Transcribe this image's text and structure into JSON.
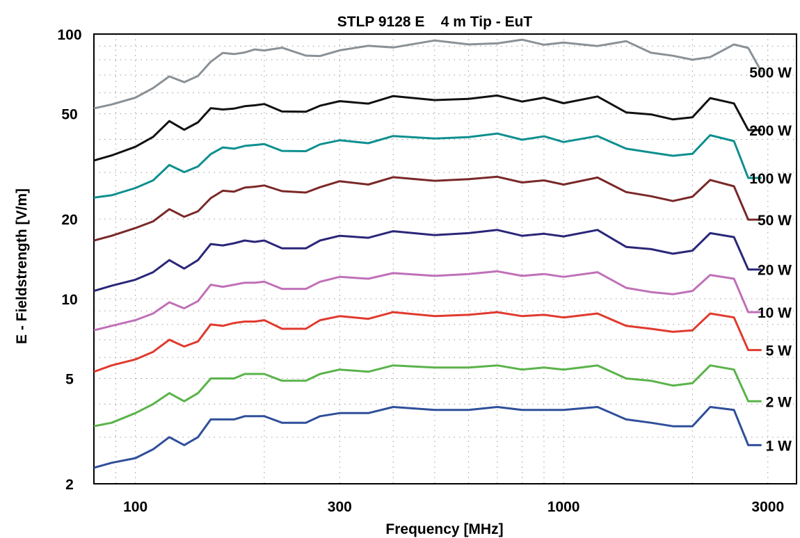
{
  "chart_data": {
    "type": "line",
    "title": "STLP 9128 E    4 m Tip - EuT",
    "xlabel": "Frequency [MHz]",
    "ylabel": "E - Fieldstrength [V/m]",
    "xscale": "log",
    "yscale": "log",
    "xlim": [
      80,
      3500
    ],
    "ylim": [
      2,
      100
    ],
    "x_ticks": [
      100,
      300,
      1000,
      3000
    ],
    "y_ticks": [
      2,
      5,
      10,
      20,
      50,
      100
    ],
    "grid": true,
    "legend": "inline labels at right end of each series",
    "x": [
      80,
      88,
      100,
      110,
      120,
      130,
      140,
      150,
      160,
      170,
      180,
      190,
      200,
      220,
      250,
      270,
      300,
      350,
      400,
      500,
      600,
      700,
      800,
      900,
      1000,
      1200,
      1400,
      1600,
      1800,
      2000,
      2200,
      2500,
      2700,
      2900
    ],
    "series": [
      {
        "name": "500 W",
        "color": "#8a9196",
        "values": [
          52.4,
          54.2,
          57.5,
          62.5,
          69.2,
          65.8,
          69.5,
          78.6,
          84.9,
          84.0,
          85.2,
          87.5,
          86.7,
          88.8,
          82.9,
          82.6,
          86.8,
          90.3,
          89.0,
          94.6,
          91.4,
          92.2,
          95.2,
          91.1,
          92.9,
          90.1,
          94.0,
          85.0,
          82.8,
          80.0,
          81.8,
          91.4,
          88.6,
          72.0
        ]
      },
      {
        "name": "200 W",
        "color": "#111111",
        "values": [
          33.3,
          34.8,
          37.5,
          40.9,
          46.9,
          43.5,
          46.4,
          52.5,
          51.9,
          52.3,
          53.4,
          53.8,
          54.4,
          51.0,
          50.9,
          53.6,
          55.8,
          54.6,
          58.3,
          56.3,
          56.9,
          58.6,
          55.6,
          57.5,
          54.8,
          58.1,
          50.6,
          49.7,
          47.6,
          48.5,
          57.3,
          54.7,
          43.4,
          43.4
        ]
      },
      {
        "name": "100 W",
        "color": "#0f8f8f",
        "values": [
          24.1,
          24.6,
          26.2,
          28.0,
          32.0,
          30.1,
          31.6,
          35.2,
          37.3,
          36.9,
          37.8,
          38.1,
          38.4,
          36.2,
          36.1,
          38.3,
          39.7,
          38.7,
          41.2,
          40.3,
          40.8,
          42.1,
          39.9,
          41.1,
          39.1,
          41.2,
          36.9,
          35.7,
          34.7,
          35.3,
          41.5,
          39.4,
          28.6,
          28.6
        ]
      },
      {
        "name": "50 W",
        "color": "#7a2828",
        "values": [
          16.6,
          17.3,
          18.5,
          19.6,
          21.8,
          20.4,
          21.4,
          24.0,
          25.6,
          25.4,
          26.3,
          26.5,
          26.8,
          25.5,
          25.2,
          26.4,
          27.8,
          27.0,
          28.8,
          27.9,
          28.3,
          28.9,
          27.5,
          28.0,
          27.0,
          28.7,
          25.3,
          24.4,
          23.4,
          24.3,
          28.1,
          26.6,
          19.9,
          19.9
        ]
      },
      {
        "name": "20 W",
        "color": "#2a2678",
        "values": [
          10.7,
          11.2,
          11.8,
          12.6,
          14.0,
          13.0,
          14.0,
          16.1,
          15.9,
          16.2,
          16.6,
          16.4,
          16.6,
          15.5,
          15.5,
          16.6,
          17.3,
          17.0,
          18.0,
          17.4,
          17.7,
          18.2,
          17.3,
          17.6,
          17.2,
          18.2,
          15.7,
          15.4,
          14.8,
          15.2,
          17.7,
          17.1,
          12.9,
          12.9
        ]
      },
      {
        "name": "10 W",
        "color": "#c070b8",
        "values": [
          7.6,
          7.9,
          8.3,
          8.8,
          9.7,
          9.2,
          9.8,
          11.3,
          11.1,
          11.3,
          11.5,
          11.5,
          11.6,
          10.9,
          10.9,
          11.6,
          12.1,
          11.9,
          12.5,
          12.2,
          12.4,
          12.7,
          12.2,
          12.4,
          12.1,
          12.6,
          11.0,
          10.6,
          10.4,
          10.7,
          12.3,
          11.9,
          8.9,
          8.9
        ]
      },
      {
        "name": "5 W",
        "color": "#e03a2e",
        "values": [
          5.3,
          5.6,
          5.9,
          6.3,
          7.0,
          6.6,
          6.9,
          8.0,
          7.9,
          8.1,
          8.2,
          8.2,
          8.3,
          7.7,
          7.7,
          8.3,
          8.6,
          8.4,
          8.9,
          8.6,
          8.7,
          8.9,
          8.6,
          8.7,
          8.5,
          8.8,
          7.9,
          7.7,
          7.5,
          7.6,
          8.8,
          8.5,
          6.4,
          6.4
        ]
      },
      {
        "name": "2 W",
        "color": "#5ab34a",
        "values": [
          3.3,
          3.4,
          3.7,
          4.0,
          4.4,
          4.1,
          4.4,
          5.0,
          5.0,
          5.0,
          5.2,
          5.2,
          5.2,
          4.9,
          4.9,
          5.2,
          5.4,
          5.3,
          5.6,
          5.5,
          5.5,
          5.6,
          5.4,
          5.5,
          5.4,
          5.6,
          5.0,
          4.9,
          4.7,
          4.8,
          5.6,
          5.4,
          4.1,
          4.1
        ]
      },
      {
        "name": "1 W",
        "color": "#2f4f9a",
        "values": [
          2.3,
          2.4,
          2.5,
          2.7,
          3.0,
          2.8,
          3.0,
          3.5,
          3.5,
          3.5,
          3.6,
          3.6,
          3.6,
          3.4,
          3.4,
          3.6,
          3.7,
          3.7,
          3.9,
          3.8,
          3.8,
          3.9,
          3.8,
          3.8,
          3.8,
          3.9,
          3.5,
          3.4,
          3.3,
          3.3,
          3.9,
          3.8,
          2.8,
          2.8
        ]
      }
    ]
  }
}
